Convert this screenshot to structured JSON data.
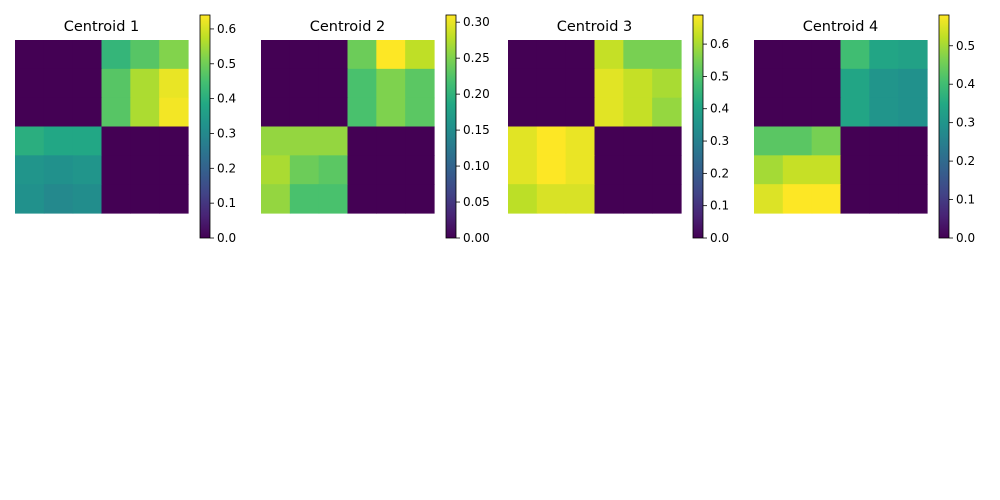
{
  "chart_data": [
    {
      "type": "heatmap",
      "title": "Centroid 1",
      "rows": 6,
      "cols": 6,
      "values": [
        [
          0,
          0,
          0,
          0.42,
          0.47,
          0.52
        ],
        [
          0,
          0,
          0,
          0.47,
          0.56,
          0.62
        ],
        [
          0,
          0,
          0,
          0.47,
          0.56,
          0.63
        ],
        [
          0.4,
          0.38,
          0.38,
          0,
          0,
          0
        ],
        [
          0.33,
          0.32,
          0.33,
          0,
          0,
          0
        ],
        [
          0.32,
          0.3,
          0.31,
          0,
          0,
          0
        ]
      ],
      "colorbar": {
        "vmin": 0,
        "vmax": 0.64,
        "ticks": [
          0,
          0.1,
          0.2,
          0.3,
          0.4,
          0.5,
          0.6
        ],
        "tick_labels": [
          "0.0",
          "0.1",
          "0.2",
          "0.3",
          "0.4",
          "0.5",
          "0.6"
        ]
      }
    },
    {
      "type": "heatmap",
      "title": "Centroid 2",
      "rows": 6,
      "cols": 6,
      "values": [
        [
          0,
          0,
          0,
          0.24,
          0.31,
          0.28
        ],
        [
          0,
          0,
          0,
          0.22,
          0.25,
          0.23
        ],
        [
          0,
          0,
          0,
          0.22,
          0.25,
          0.23
        ],
        [
          0.26,
          0.26,
          0.26,
          0,
          0,
          0
        ],
        [
          0.27,
          0.24,
          0.23,
          0,
          0,
          0
        ],
        [
          0.26,
          0.22,
          0.22,
          0,
          0,
          0
        ]
      ],
      "colorbar": {
        "vmin": 0,
        "vmax": 0.31,
        "ticks": [
          0,
          0.05,
          0.1,
          0.15,
          0.2,
          0.25,
          0.3
        ],
        "tick_labels": [
          "0.00",
          "0.05",
          "0.10",
          "0.15",
          "0.20",
          "0.25",
          "0.30"
        ]
      }
    },
    {
      "type": "heatmap",
      "title": "Centroid 3",
      "rows": 6,
      "cols": 6,
      "values": [
        [
          0,
          0,
          0,
          0.63,
          0.55,
          0.55
        ],
        [
          0,
          0,
          0,
          0.66,
          0.63,
          0.6
        ],
        [
          0,
          0,
          0,
          0.66,
          0.63,
          0.58
        ],
        [
          0.66,
          0.69,
          0.67,
          0,
          0,
          0
        ],
        [
          0.66,
          0.69,
          0.67,
          0,
          0,
          0
        ],
        [
          0.62,
          0.65,
          0.65,
          0,
          0,
          0
        ]
      ],
      "colorbar": {
        "vmin": 0,
        "vmax": 0.69,
        "ticks": [
          0,
          0.1,
          0.2,
          0.3,
          0.4,
          0.5,
          0.6
        ],
        "tick_labels": [
          "0.0",
          "0.1",
          "0.2",
          "0.3",
          "0.4",
          "0.5",
          "0.6"
        ]
      }
    },
    {
      "type": "heatmap",
      "title": "Centroid 4",
      "rows": 6,
      "cols": 6,
      "values": [
        [
          0,
          0,
          0,
          0.4,
          0.34,
          0.33
        ],
        [
          0,
          0,
          0,
          0.34,
          0.3,
          0.29
        ],
        [
          0,
          0,
          0,
          0.34,
          0.3,
          0.29
        ],
        [
          0.43,
          0.43,
          0.46,
          0,
          0,
          0
        ],
        [
          0.5,
          0.53,
          0.53,
          0,
          0,
          0
        ],
        [
          0.55,
          0.58,
          0.58,
          0,
          0,
          0
        ]
      ],
      "colorbar": {
        "vmin": 0,
        "vmax": 0.58,
        "ticks": [
          0,
          0.1,
          0.2,
          0.3,
          0.4,
          0.5
        ],
        "tick_labels": [
          "0.0",
          "0.1",
          "0.2",
          "0.3",
          "0.4",
          "0.5"
        ]
      }
    }
  ]
}
